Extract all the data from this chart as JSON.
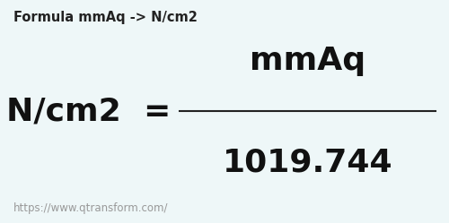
{
  "background_color": "#eef7f8",
  "title_text": "Formula mmAq -> N/cm2",
  "title_fontsize": 10.5,
  "title_color": "#222222",
  "unit_from": "mmAq",
  "unit_to": "N/cm2",
  "equals_sign": "=",
  "conversion_value": "1019.744",
  "main_fontsize": 26,
  "url_text": "https://www.qtransform.com/",
  "url_fontsize": 8.5,
  "url_color": "#999999",
  "line_color": "#222222",
  "fig_width": 5.0,
  "fig_height": 2.49
}
